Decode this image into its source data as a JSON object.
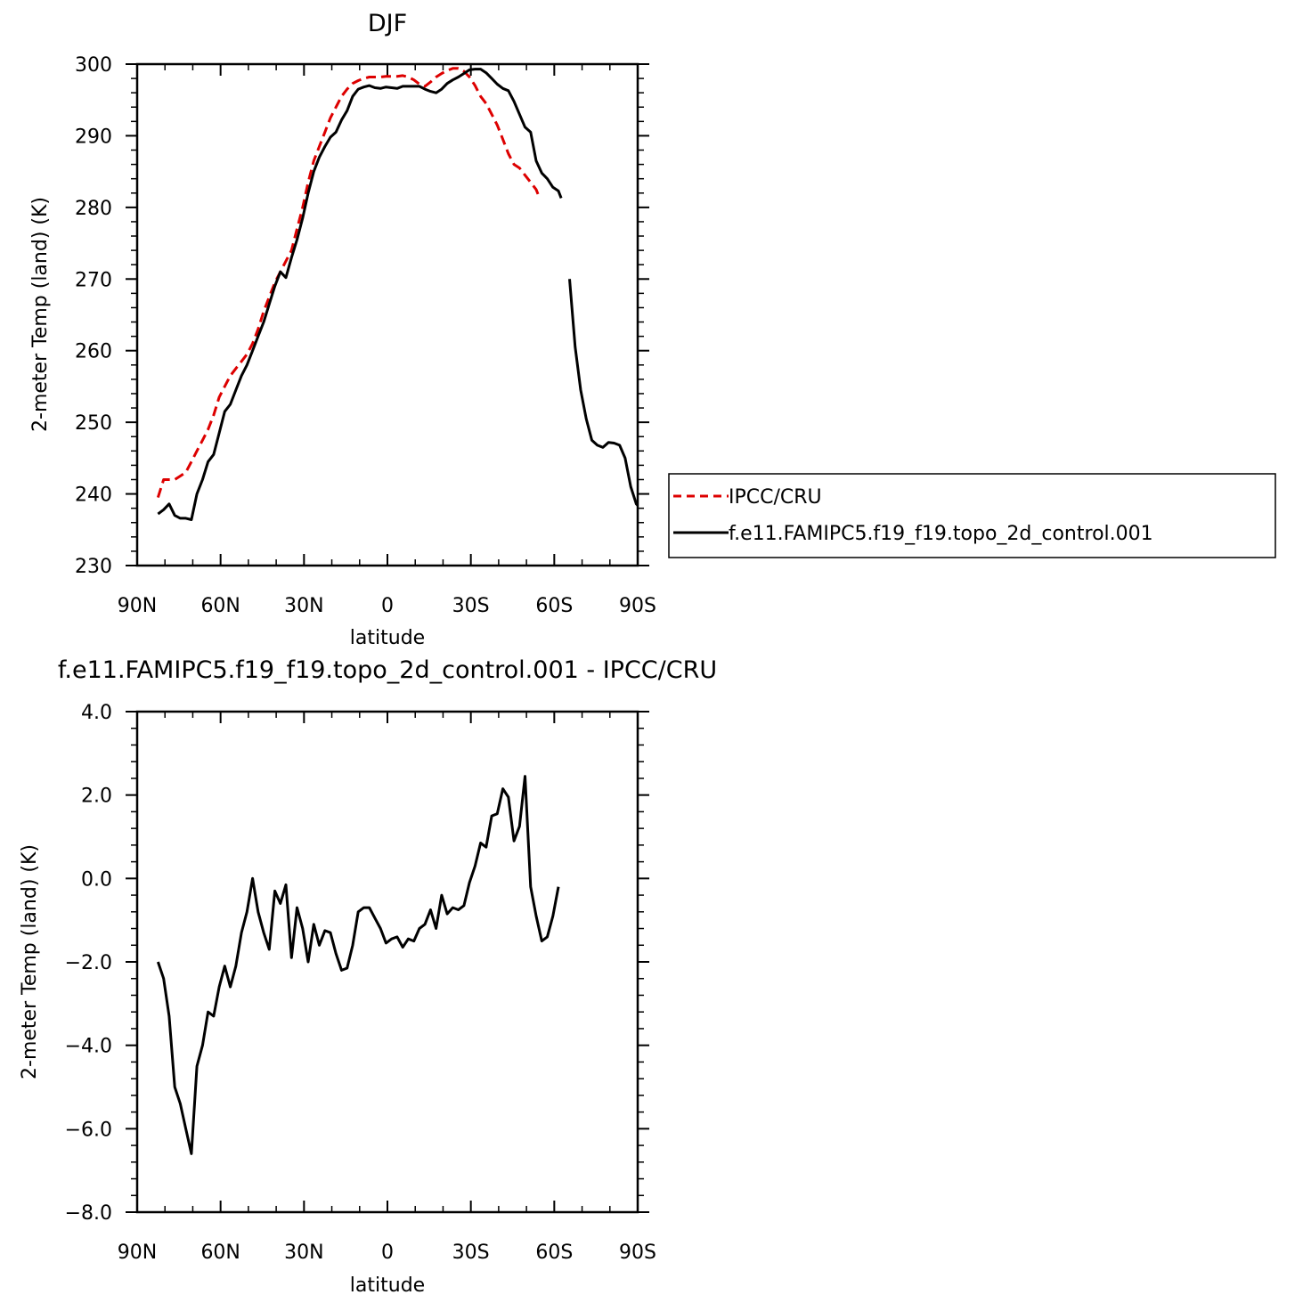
{
  "chart_data": [
    {
      "type": "line",
      "title": "DJF",
      "xlabel": "latitude",
      "ylabel": "2-meter Temp (land) (K)",
      "xlim": [
        90,
        -90
      ],
      "ylim": [
        230,
        300
      ],
      "x_ticks": [
        90,
        60,
        30,
        0,
        -30,
        -60,
        -90
      ],
      "x_tick_labels": [
        "90N",
        "60N",
        "30N",
        "0",
        "30S",
        "60S",
        "90S"
      ],
      "y_ticks": [
        230,
        240,
        250,
        260,
        270,
        280,
        290,
        300
      ],
      "y_tick_labels": [
        "230",
        "240",
        "250",
        "260",
        "270",
        "280",
        "290",
        "300"
      ],
      "legend": {
        "placement": "right"
      },
      "series": [
        {
          "name": "IPCC/CRU",
          "color": "#dd0000",
          "dash": "dashed",
          "points": [
            [
              82.5,
              239.5
            ],
            [
              80.5,
              242.0
            ],
            [
              78.5,
              242.0
            ],
            [
              76.5,
              242.0
            ],
            [
              74.5,
              242.5
            ],
            [
              72.5,
              243.0
            ],
            [
              70.5,
              244.5
            ],
            [
              68.5,
              246.0
            ],
            [
              66.5,
              247.5
            ],
            [
              64.5,
              249.0
            ],
            [
              62.5,
              251.0
            ],
            [
              60.5,
              253.5
            ],
            [
              58.5,
              255.0
            ],
            [
              56.5,
              256.5
            ],
            [
              54.5,
              257.5
            ],
            [
              52.5,
              258.5
            ],
            [
              50.5,
              259.5
            ],
            [
              48.5,
              261.0
            ],
            [
              46.5,
              263.0
            ],
            [
              44.5,
              265.5
            ],
            [
              42.5,
              267.5
            ],
            [
              40.5,
              269.5
            ],
            [
              38.5,
              271.0
            ],
            [
              36.5,
              272.5
            ],
            [
              34.5,
              274.0
            ],
            [
              32.5,
              277.0
            ],
            [
              30.5,
              280.0
            ],
            [
              28.5,
              283.5
            ],
            [
              26.5,
              286.5
            ],
            [
              24.5,
              288.5
            ],
            [
              22.5,
              290.5
            ],
            [
              20.5,
              292.5
            ],
            [
              18.5,
              294.0
            ],
            [
              16.5,
              295.5
            ],
            [
              14.5,
              296.5
            ],
            [
              12.5,
              297.3
            ],
            [
              10.5,
              297.7
            ],
            [
              8.5,
              298.0
            ],
            [
              6.5,
              298.2
            ],
            [
              4.5,
              298.2
            ],
            [
              2.5,
              298.2
            ],
            [
              0.5,
              298.3
            ],
            [
              -1.5,
              298.3
            ],
            [
              -3.5,
              298.3
            ],
            [
              -5.5,
              298.4
            ],
            [
              -7.5,
              298.2
            ],
            [
              -9.5,
              297.8
            ],
            [
              -11.5,
              297.2
            ],
            [
              -13.5,
              296.9
            ],
            [
              -15.5,
              297.5
            ],
            [
              -17.5,
              298.2
            ],
            [
              -19.5,
              298.7
            ],
            [
              -21.5,
              299.1
            ],
            [
              -23.5,
              299.4
            ],
            [
              -25.5,
              299.4
            ],
            [
              -27.5,
              299.0
            ],
            [
              -29.5,
              298.2
            ],
            [
              -31.5,
              297.0
            ],
            [
              -33.5,
              295.5
            ],
            [
              -35.5,
              294.5
            ],
            [
              -37.5,
              293.0
            ],
            [
              -39.5,
              291.5
            ],
            [
              -41.5,
              289.5
            ],
            [
              -43.5,
              287.5
            ],
            [
              -45.5,
              286.0
            ],
            [
              -47.5,
              285.5
            ],
            [
              -49.5,
              284.5
            ],
            [
              -51.5,
              283.5
            ],
            [
              -53.5,
              282.5
            ],
            [
              -54.5,
              281.5
            ]
          ]
        },
        {
          "name": "f.e11.FAMIPC5.f19_f19.topo_2d_control.001",
          "color": "#000000",
          "dash": "solid",
          "points": [
            [
              82.5,
              237.2
            ],
            [
              80.5,
              237.8
            ],
            [
              78.5,
              238.6
            ],
            [
              76.5,
              237.0
            ],
            [
              74.5,
              236.6
            ],
            [
              72.5,
              236.6
            ],
            [
              70.5,
              236.4
            ],
            [
              68.5,
              240.0
            ],
            [
              66.5,
              242.0
            ],
            [
              64.5,
              244.5
            ],
            [
              62.5,
              245.5
            ],
            [
              60.5,
              248.5
            ],
            [
              58.5,
              251.5
            ],
            [
              56.5,
              252.5
            ],
            [
              54.5,
              254.5
            ],
            [
              52.5,
              256.5
            ],
            [
              50.5,
              258.0
            ],
            [
              48.5,
              260.0
            ],
            [
              46.5,
              262.0
            ],
            [
              44.5,
              264.0
            ],
            [
              42.5,
              266.5
            ],
            [
              40.5,
              269.0
            ],
            [
              38.5,
              271.0
            ],
            [
              36.5,
              270.2
            ],
            [
              34.5,
              273.0
            ],
            [
              32.5,
              275.5
            ],
            [
              30.5,
              278.5
            ],
            [
              28.5,
              282.0
            ],
            [
              26.5,
              285.0
            ],
            [
              24.5,
              287.0
            ],
            [
              22.5,
              288.5
            ],
            [
              20.5,
              289.8
            ],
            [
              18.5,
              290.5
            ],
            [
              16.5,
              292.2
            ],
            [
              14.5,
              293.5
            ],
            [
              12.5,
              295.5
            ],
            [
              10.5,
              296.5
            ],
            [
              8.5,
              296.8
            ],
            [
              6.5,
              297.0
            ],
            [
              4.5,
              296.7
            ],
            [
              2.5,
              296.6
            ],
            [
              0.5,
              296.8
            ],
            [
              -1.5,
              296.7
            ],
            [
              -3.5,
              296.6
            ],
            [
              -5.5,
              296.9
            ],
            [
              -7.5,
              296.9
            ],
            [
              -9.5,
              296.9
            ],
            [
              -11.5,
              296.9
            ],
            [
              -13.5,
              296.5
            ],
            [
              -15.5,
              296.2
            ],
            [
              -17.5,
              296.0
            ],
            [
              -19.5,
              296.5
            ],
            [
              -21.5,
              297.3
            ],
            [
              -23.5,
              297.8
            ],
            [
              -25.5,
              298.2
            ],
            [
              -27.5,
              298.7
            ],
            [
              -29.5,
              299.2
            ],
            [
              -31.5,
              299.3
            ],
            [
              -33.5,
              299.3
            ],
            [
              -35.5,
              298.8
            ],
            [
              -37.5,
              298.0
            ],
            [
              -39.5,
              297.2
            ],
            [
              -41.5,
              296.6
            ],
            [
              -43.5,
              296.3
            ],
            [
              -45.5,
              294.8
            ],
            [
              -47.5,
              293.0
            ],
            [
              -49.5,
              291.2
            ],
            [
              -51.5,
              290.5
            ],
            [
              -53.5,
              286.5
            ],
            [
              -55.5,
              284.8
            ],
            [
              -57.5,
              284.0
            ],
            [
              -59.5,
              282.8
            ],
            [
              -61.5,
              282.3
            ],
            [
              -62.5,
              281.3
            ],
            null,
            [
              -65.5,
              270.0
            ],
            [
              -67.5,
              260.5
            ],
            [
              -69.5,
              254.5
            ],
            [
              -71.5,
              250.5
            ],
            [
              -73.5,
              247.5
            ],
            [
              -75.5,
              246.8
            ],
            [
              -77.5,
              246.5
            ],
            [
              -79.5,
              247.2
            ],
            [
              -81.5,
              247.1
            ],
            [
              -83.5,
              246.8
            ],
            [
              -85.5,
              245.0
            ],
            [
              -87.5,
              241.0
            ],
            [
              -89.5,
              238.6
            ],
            [
              -90.0,
              238.4
            ]
          ]
        }
      ]
    },
    {
      "type": "line",
      "title": "f.e11.FAMIPC5.f19_f19.topo_2d_control.001 - IPCC/CRU",
      "xlabel": "latitude",
      "ylabel": "2-meter Temp (land) (K)",
      "xlim": [
        90,
        -90
      ],
      "ylim": [
        -8.0,
        4.0
      ],
      "x_ticks": [
        90,
        60,
        30,
        0,
        -30,
        -60,
        -90
      ],
      "x_tick_labels": [
        "90N",
        "60N",
        "30N",
        "0",
        "30S",
        "60S",
        "90S"
      ],
      "y_ticks": [
        -8,
        -6,
        -4,
        -2,
        0,
        2,
        4
      ],
      "y_tick_labels": [
        "−8.0",
        "−6.0",
        "−4.0",
        "−2.0",
        "0.0",
        "2.0",
        "4.0"
      ],
      "series": [
        {
          "color": "#000000",
          "dash": "solid",
          "points": [
            [
              82.5,
              -2.0
            ],
            [
              80.5,
              -2.4
            ],
            [
              78.5,
              -3.3
            ],
            [
              76.5,
              -5.0
            ],
            [
              74.5,
              -5.4
            ],
            [
              72.5,
              -6.0
            ],
            [
              70.5,
              -6.6
            ],
            [
              68.5,
              -4.5
            ],
            [
              66.5,
              -4.0
            ],
            [
              64.5,
              -3.2
            ],
            [
              62.5,
              -3.3
            ],
            [
              60.5,
              -2.6
            ],
            [
              58.5,
              -2.1
            ],
            [
              56.5,
              -2.6
            ],
            [
              54.5,
              -2.1
            ],
            [
              52.5,
              -1.3
            ],
            [
              50.5,
              -0.8
            ],
            [
              48.5,
              0.0
            ],
            [
              46.5,
              -0.8
            ],
            [
              44.5,
              -1.3
            ],
            [
              42.5,
              -1.7
            ],
            [
              40.5,
              -0.3
            ],
            [
              38.5,
              -0.6
            ],
            [
              36.5,
              -0.15
            ],
            [
              34.5,
              -1.9
            ],
            [
              32.5,
              -0.7
            ],
            [
              30.5,
              -1.2
            ],
            [
              28.5,
              -2.0
            ],
            [
              26.5,
              -1.1
            ],
            [
              24.5,
              -1.6
            ],
            [
              22.5,
              -1.25
            ],
            [
              20.5,
              -1.3
            ],
            [
              18.5,
              -1.8
            ],
            [
              16.5,
              -2.2
            ],
            [
              14.5,
              -2.15
            ],
            [
              12.5,
              -1.6
            ],
            [
              10.5,
              -0.8
            ],
            [
              8.5,
              -0.7
            ],
            [
              6.5,
              -0.7
            ],
            [
              4.5,
              -0.95
            ],
            [
              2.5,
              -1.2
            ],
            [
              0.5,
              -1.55
            ],
            [
              -1.5,
              -1.45
            ],
            [
              -3.5,
              -1.4
            ],
            [
              -5.5,
              -1.65
            ],
            [
              -7.5,
              -1.45
            ],
            [
              -9.5,
              -1.5
            ],
            [
              -11.5,
              -1.2
            ],
            [
              -13.5,
              -1.1
            ],
            [
              -15.5,
              -0.75
            ],
            [
              -17.5,
              -1.2
            ],
            [
              -19.5,
              -0.4
            ],
            [
              -21.5,
              -0.85
            ],
            [
              -23.5,
              -0.7
            ],
            [
              -25.5,
              -0.75
            ],
            [
              -27.5,
              -0.65
            ],
            [
              -29.5,
              -0.1
            ],
            [
              -31.5,
              0.3
            ],
            [
              -33.5,
              0.85
            ],
            [
              -35.5,
              0.75
            ],
            [
              -37.5,
              1.5
            ],
            [
              -39.5,
              1.55
            ],
            [
              -41.5,
              2.15
            ],
            [
              -43.5,
              1.95
            ],
            [
              -45.5,
              0.9
            ],
            [
              -47.5,
              1.25
            ],
            [
              -49.5,
              2.45
            ],
            [
              -51.5,
              -0.2
            ],
            [
              -53.5,
              -0.9
            ],
            [
              -55.5,
              -1.5
            ],
            [
              -57.5,
              -1.4
            ],
            [
              -59.5,
              -0.9
            ],
            [
              -61.5,
              -0.2
            ]
          ]
        }
      ]
    }
  ]
}
